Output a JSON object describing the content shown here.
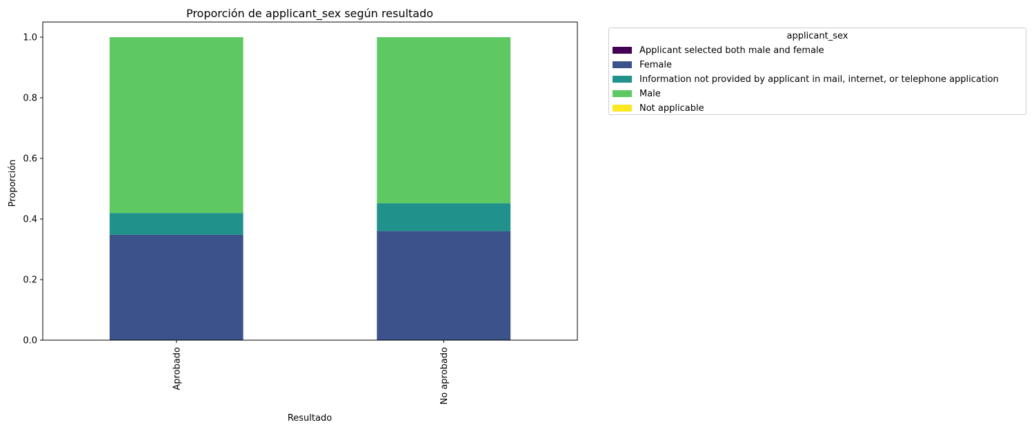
{
  "chart_data": {
    "type": "bar",
    "stacked": true,
    "title": "Proporción de applicant_sex según resultado",
    "xlabel": "Resultado",
    "ylabel": "Proporción",
    "categories": [
      "Aprobado",
      "No aprobado"
    ],
    "ylim": [
      0,
      1.05
    ],
    "yticks": [
      "0.0",
      "0.2",
      "0.4",
      "0.6",
      "0.8",
      "1.0"
    ],
    "legend_title": "applicant_sex",
    "legend_position": "outside upper-right",
    "grid": false,
    "series": [
      {
        "name": "Applicant selected both male and female",
        "color": "#440154",
        "values": [
          0.0,
          0.0
        ]
      },
      {
        "name": "Female",
        "color": "#3b528b",
        "values": [
          0.348,
          0.36
        ]
      },
      {
        "name": "Information not provided by applicant in mail, internet, or telephone application",
        "color": "#21918c",
        "values": [
          0.072,
          0.092
        ]
      },
      {
        "name": "Male",
        "color": "#5ec962",
        "values": [
          0.58,
          0.548
        ]
      },
      {
        "name": "Not applicable",
        "color": "#fde725",
        "values": [
          0.0,
          0.0
        ]
      }
    ]
  }
}
